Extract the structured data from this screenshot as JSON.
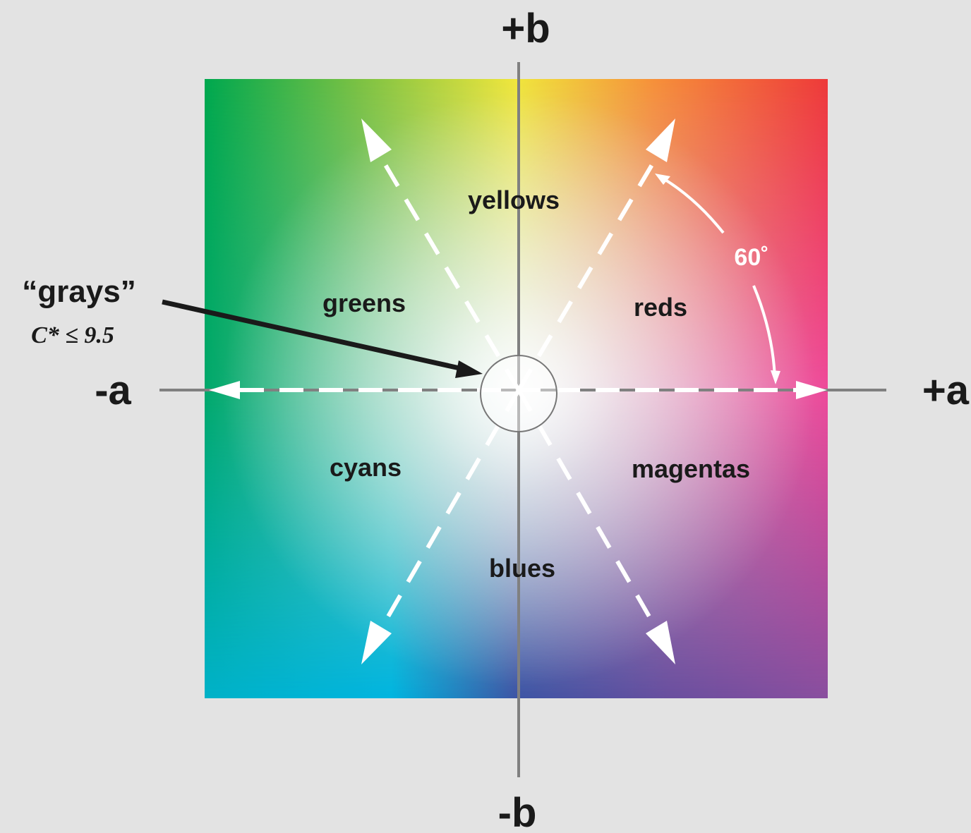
{
  "axes": {
    "plus_b": "+b",
    "minus_b": "-b",
    "minus_a": "-a",
    "plus_a": "+a"
  },
  "regions": {
    "yellows": "yellows",
    "greens": "greens",
    "reds": "reds",
    "cyans": "cyans",
    "magentas": "magentas",
    "blues": "blues"
  },
  "grays": {
    "label": "“grays”",
    "condition": "C* ≤ 9.5"
  },
  "angle": "60˚"
}
